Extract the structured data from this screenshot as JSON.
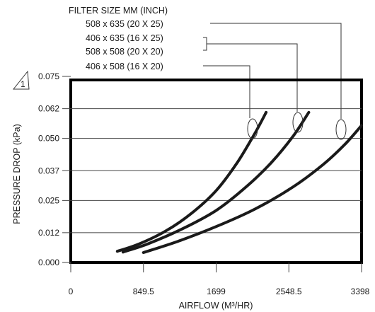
{
  "chart_data": {
    "type": "line",
    "legend_title": "FILTER SIZE MM (INCH)",
    "note_symbol": "1",
    "xlabel": "AIRFLOW (M³/HR)",
    "ylabel": "PRESSURE DROP (kPa)",
    "xlim": [
      0,
      3398
    ],
    "ylim": [
      0,
      0.075
    ],
    "grid": "horizontal",
    "x_ticks": [
      0,
      849.5,
      1699,
      2548.5,
      3398
    ],
    "x_tick_labels": [
      "0",
      "849.5",
      "1699",
      "2548.5",
      "3398"
    ],
    "y_ticks": [
      0.0,
      0.012,
      0.025,
      0.037,
      0.05,
      0.062,
      0.075
    ],
    "y_tick_labels": [
      "0.000",
      "0.012",
      "0.025",
      "0.037",
      "0.050",
      "0.062",
      "0.075"
    ],
    "series": [
      {
        "name": "406 x 508 (16 X 20)",
        "x": [
          544,
          800,
          1100,
          1400,
          1700,
          1950,
          2150,
          2283
        ],
        "y": [
          0.0045,
          0.0075,
          0.0125,
          0.0195,
          0.029,
          0.0405,
          0.052,
          0.0605
        ]
      },
      {
        "name": "508 x 635 (20 X 25) / 508 x 508 (20 X 20)",
        "x": [
          611,
          900,
          1300,
          1700,
          2050,
          2350,
          2600,
          2781
        ],
        "y": [
          0.0042,
          0.0075,
          0.0135,
          0.021,
          0.0305,
          0.0405,
          0.051,
          0.0605
        ]
      },
      {
        "name": "406 x 635 (16 X 25)",
        "x": [
          849,
          1250,
          1700,
          2150,
          2600,
          2950,
          3200,
          3398
        ],
        "y": [
          0.004,
          0.0085,
          0.0145,
          0.0215,
          0.0305,
          0.0395,
          0.0475,
          0.0552
        ]
      }
    ],
    "legend_entries": [
      "508 x 635 (20 X 25)",
      "406 x 635 (16 X 25)",
      "508 x 508 (20 X 20)",
      "406 x 508 (16 X 20)"
    ]
  }
}
